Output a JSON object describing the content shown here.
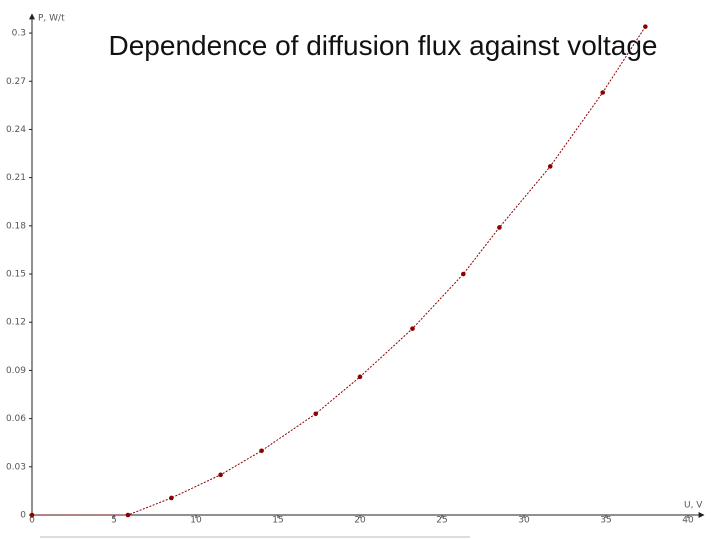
{
  "chart_data": {
    "type": "line",
    "title": "Dependence of diffusion flux  against voltage",
    "y_label": "P, W/t",
    "x_label": "U, V",
    "x": [
      0,
      5.85,
      8.5,
      11.5,
      14.0,
      17.3,
      20.0,
      23.2,
      26.3,
      28.5,
      31.6,
      34.8,
      37.4
    ],
    "values": [
      0,
      0,
      0.0106,
      0.025,
      0.04,
      0.063,
      0.086,
      0.116,
      0.15,
      0.179,
      0.217,
      0.263,
      0.304
    ],
    "color": "#8b0000",
    "xlim": [
      0,
      40
    ],
    "xticks": [
      0,
      5,
      10,
      15,
      20,
      25,
      30,
      35,
      40
    ],
    "ylim": [
      0,
      0.31
    ],
    "yticks": [
      0,
      0.03,
      0.06,
      0.09,
      0.12,
      0.15,
      0.18,
      0.21,
      0.24,
      0.27,
      0.3
    ]
  }
}
